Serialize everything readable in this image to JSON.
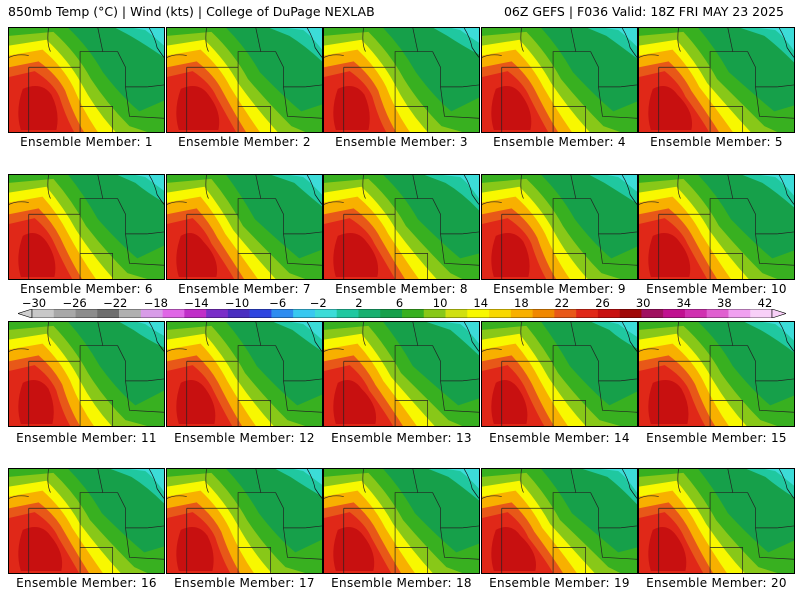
{
  "header": {
    "left": "850mb Temp (°C) | Wind (kts) | College of DuPage NEXLAB",
    "right": "06Z GEFS | F036 Valid: 18Z FRI MAY 23 2025"
  },
  "members": [
    "Ensemble Member: 1",
    "Ensemble Member: 2",
    "Ensemble Member: 3",
    "Ensemble Member: 4",
    "Ensemble Member: 5",
    "Ensemble Member: 6",
    "Ensemble Member: 7",
    "Ensemble Member: 8",
    "Ensemble Member: 9",
    "Ensemble Member: 10",
    "Ensemble Member: 11",
    "Ensemble Member: 12",
    "Ensemble Member: 13",
    "Ensemble Member: 14",
    "Ensemble Member: 15",
    "Ensemble Member: 16",
    "Ensemble Member: 17",
    "Ensemble Member: 18",
    "Ensemble Member: 19",
    "Ensemble Member: 20"
  ],
  "colorbar": {
    "tick_labels": [
      "−30",
      "−26",
      "−22",
      "−18",
      "−14",
      "−10",
      "−6",
      "−2",
      "2",
      "6",
      "10",
      "14",
      "18",
      "22",
      "26",
      "30",
      "34",
      "38",
      "42"
    ],
    "colors": [
      "#c8c8c8",
      "#a8a8a8",
      "#8c8c8c",
      "#6e6e6e",
      "#b0b0b0",
      "#d89ce8",
      "#e066e6",
      "#c02ec8",
      "#7a2ec8",
      "#4a2ec0",
      "#2e46e0",
      "#2e8cf0",
      "#38c8f0",
      "#3cdcd8",
      "#20c8a0",
      "#18b070",
      "#16a04a",
      "#38b020",
      "#88c818",
      "#d0e010",
      "#f8f800",
      "#f8d800",
      "#f8b000",
      "#f08800",
      "#e85818",
      "#e02818",
      "#c81010",
      "#a00808",
      "#a01060",
      "#c01090",
      "#d030b0",
      "#e060d0",
      "#f0a0f0",
      "#f8d0f8"
    ]
  }
}
